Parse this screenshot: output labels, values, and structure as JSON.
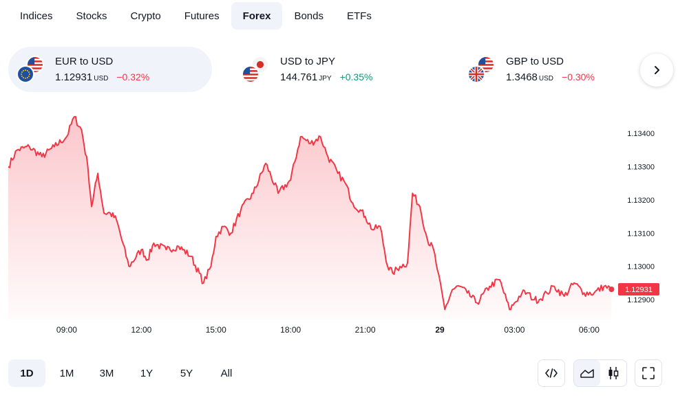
{
  "tabs": [
    {
      "label": "Indices",
      "active": false
    },
    {
      "label": "Stocks",
      "active": false
    },
    {
      "label": "Crypto",
      "active": false
    },
    {
      "label": "Futures",
      "active": false
    },
    {
      "label": "Forex",
      "active": true
    },
    {
      "label": "Bonds",
      "active": false
    },
    {
      "label": "ETFs",
      "active": false
    }
  ],
  "tickers": [
    {
      "name": "EUR to USD",
      "price": "1.12931",
      "unit": "USD",
      "change": "−0.32%",
      "direction": "neg",
      "active": true,
      "flags": [
        "eu-flag",
        "us-flag"
      ]
    },
    {
      "name": "USD to JPY",
      "price": "144.761",
      "unit": "JPY",
      "change": "+0.35%",
      "direction": "pos",
      "active": false,
      "flags": [
        "us-flag",
        "jp-flag"
      ]
    },
    {
      "name": "GBP to USD",
      "price": "1.3468",
      "unit": "USD",
      "change": "−0.30%",
      "direction": "neg",
      "active": false,
      "flags": [
        "uk-flag",
        "us-flag"
      ]
    }
  ],
  "next_icon": "chevron-right-icon",
  "chart_data": {
    "type": "area",
    "series_name": "EUR to USD",
    "y_ticks": [
      "1.13400",
      "1.13300",
      "1.13200",
      "1.13100",
      "1.13000",
      "1.12900"
    ],
    "y_tick_values": [
      1.134,
      1.133,
      1.132,
      1.131,
      1.13,
      1.129
    ],
    "ylim": [
      1.1284,
      1.1345
    ],
    "x_ticks": [
      {
        "label": "09:00",
        "h": 9
      },
      {
        "label": "12:00",
        "h": 12
      },
      {
        "label": "15:00",
        "h": 15
      },
      {
        "label": "18:00",
        "h": 18
      },
      {
        "label": "21:00",
        "h": 21
      },
      {
        "label": "29",
        "h": 24,
        "bold": true
      },
      {
        "label": "03:00",
        "h": 27
      },
      {
        "label": "06:00",
        "h": 30
      }
    ],
    "xlim_hours": [
      6.65,
      31.0
    ],
    "last_price_label": "1.12931",
    "x_hours": [
      6.65,
      7.0,
      7.5,
      8.0,
      8.5,
      9.0,
      9.3,
      9.6,
      9.85,
      10.0,
      10.25,
      10.5,
      10.75,
      11.0,
      11.5,
      12.0,
      12.25,
      12.5,
      13.0,
      13.5,
      14.0,
      14.5,
      14.8,
      15.0,
      15.3,
      15.6,
      16.0,
      16.5,
      17.0,
      17.5,
      18.0,
      18.4,
      18.8,
      19.2,
      19.5,
      19.9,
      20.2,
      20.5,
      20.8,
      21.0,
      21.3,
      21.6,
      21.9,
      22.1,
      22.4,
      22.7,
      22.9,
      23.2,
      23.5,
      23.75,
      23.9,
      24.2,
      24.5,
      24.8,
      25.1,
      25.5,
      26.0,
      26.4,
      26.8,
      27.0,
      27.3,
      27.5,
      27.8,
      28.0,
      28.3,
      28.6,
      29.0,
      29.4,
      29.8,
      30.2,
      30.6,
      30.9
    ],
    "values": [
      1.133,
      1.1335,
      1.1336,
      1.1333,
      1.1336,
      1.1339,
      1.1345,
      1.1341,
      1.133,
      1.1318,
      1.1328,
      1.1316,
      1.1316,
      1.1314,
      1.13,
      1.1305,
      1.1302,
      1.1307,
      1.1305,
      1.1306,
      1.1303,
      1.1295,
      1.13,
      1.1309,
      1.1312,
      1.131,
      1.1317,
      1.1322,
      1.1331,
      1.1322,
      1.1326,
      1.1339,
      1.1337,
      1.1339,
      1.1333,
      1.1328,
      1.1325,
      1.1319,
      1.1317,
      1.1315,
      1.1311,
      1.1312,
      1.13,
      1.1298,
      1.13,
      1.1301,
      1.1322,
      1.1318,
      1.1308,
      1.1305,
      1.1299,
      1.1287,
      1.1293,
      1.1294,
      1.1292,
      1.1289,
      1.1294,
      1.1296,
      1.1287,
      1.1289,
      1.1292,
      1.1292,
      1.129,
      1.129,
      1.1292,
      1.1294,
      1.1291,
      1.1295,
      1.1292,
      1.1292,
      1.1294,
      1.12931
    ]
  },
  "ranges": [
    {
      "label": "1D",
      "active": true
    },
    {
      "label": "1M",
      "active": false
    },
    {
      "label": "3M",
      "active": false
    },
    {
      "label": "1Y",
      "active": false
    },
    {
      "label": "5Y",
      "active": false
    },
    {
      "label": "All",
      "active": false
    }
  ],
  "tools": {
    "embed_icon": "code-embed-icon",
    "area_icon": "area-chart-icon",
    "candles_icon": "candlestick-icon",
    "fullscreen_icon": "fullscreen-icon"
  },
  "colors": {
    "accent_red": "#f23645",
    "accent_green": "#089981",
    "active_bg": "#f0f3fa"
  }
}
